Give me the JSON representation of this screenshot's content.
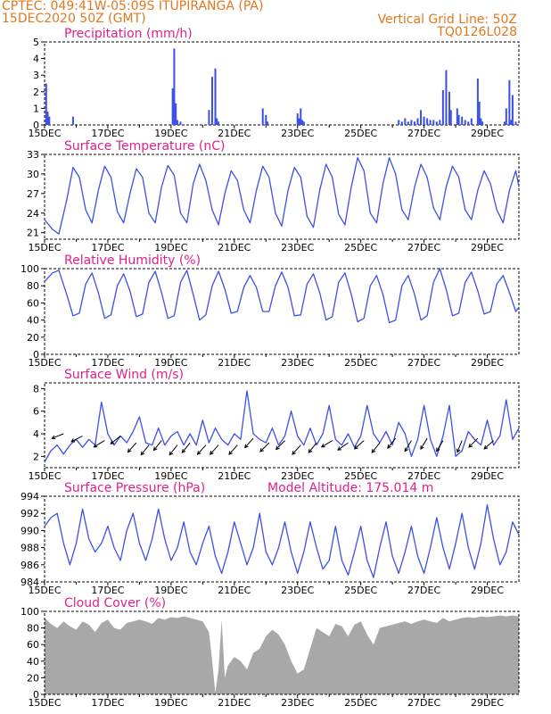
{
  "header": {
    "line1_left": "CPTEC:   049:41W-05:09S   ITUPIRANGA (PA)",
    "line2_left": "15DEC2020 50Z (GMT)",
    "line1_right": "Vertical Grid Line: 50Z",
    "line2_right": "TQ0126L028"
  },
  "colors": {
    "line": "#3c50e6",
    "bar": "#3c50e6",
    "cloud": "#a8a8a8",
    "title": "#e0208c",
    "header": "#e07820"
  },
  "chart_data": [
    {
      "type": "bar",
      "title": "Precipitation (mm/h)",
      "ylim": [
        0,
        5
      ],
      "yticks": [
        "0",
        "1",
        "2",
        "3",
        "4",
        "5"
      ],
      "xticks": [
        "15DEC",
        "17DEC",
        "19DEC",
        "21DEC",
        "23DEC",
        "25DEC",
        "27DEC",
        "29DEC"
      ],
      "xrange_days": [
        15,
        30
      ],
      "day": [
        15.05,
        15.1,
        15.15,
        15.9,
        19.05,
        19.1,
        19.15,
        19.2,
        19.3,
        20.2,
        20.3,
        20.4,
        20.45,
        20.5,
        21.9,
        22.0,
        22.05,
        23.0,
        23.05,
        23.1,
        23.15,
        23.2,
        26.2,
        26.3,
        26.4,
        26.5,
        26.6,
        26.7,
        26.8,
        26.9,
        27.0,
        27.1,
        27.2,
        27.3,
        27.4,
        27.5,
        27.6,
        27.7,
        27.8,
        27.85,
        28.05,
        28.1,
        28.2,
        28.3,
        28.4,
        28.5,
        28.7,
        28.75,
        28.8,
        28.85,
        29.55,
        29.6,
        29.7,
        29.75,
        29.8,
        29.9
      ],
      "values": [
        2.5,
        0.8,
        0.5,
        0.5,
        2.2,
        4.6,
        1.3,
        0.3,
        0.2,
        0.9,
        2.9,
        3.4,
        0.4,
        0.2,
        1.0,
        0.6,
        0.2,
        0.7,
        0.4,
        1.0,
        0.3,
        0.2,
        0.3,
        0.2,
        0.4,
        0.2,
        0.3,
        0.2,
        0.4,
        0.9,
        0.5,
        0.4,
        0.3,
        0.3,
        0.2,
        0.3,
        2.1,
        3.3,
        2.0,
        0.9,
        1.0,
        0.6,
        0.5,
        0.3,
        0.2,
        0.4,
        2.8,
        1.4,
        0.4,
        0.2,
        0.2,
        1.0,
        2.7,
        0.3,
        1.8,
        0.2
      ]
    },
    {
      "type": "line",
      "title": "Surface Temperature (nC)",
      "ylim": [
        20,
        33
      ],
      "yticks": [
        "21",
        "24",
        "27",
        "30",
        "33"
      ],
      "xticks": [
        "15DEC",
        "17DEC",
        "19DEC",
        "21DEC",
        "23DEC",
        "25DEC",
        "27DEC",
        "29DEC"
      ],
      "xrange_days": [
        15,
        30
      ],
      "x": [
        15.0,
        15.25,
        15.45,
        15.7,
        15.9,
        16.1,
        16.3,
        16.5,
        16.7,
        16.9,
        17.1,
        17.3,
        17.5,
        17.7,
        17.9,
        18.1,
        18.3,
        18.5,
        18.7,
        18.9,
        19.1,
        19.3,
        19.5,
        19.7,
        19.9,
        20.1,
        20.3,
        20.5,
        20.7,
        20.9,
        21.1,
        21.3,
        21.5,
        21.7,
        21.9,
        22.1,
        22.3,
        22.5,
        22.7,
        22.9,
        23.1,
        23.3,
        23.5,
        23.7,
        23.9,
        24.1,
        24.3,
        24.5,
        24.7,
        24.9,
        25.1,
        25.3,
        25.5,
        25.7,
        25.9,
        26.1,
        26.3,
        26.5,
        26.7,
        26.9,
        27.1,
        27.3,
        27.5,
        27.7,
        27.9,
        28.1,
        28.3,
        28.5,
        28.7,
        28.9,
        29.1,
        29.3,
        29.5,
        29.7,
        29.9,
        30.0
      ],
      "y": [
        23.0,
        21.5,
        20.8,
        26.0,
        31.0,
        29.5,
        24.5,
        22.5,
        27.5,
        31.2,
        29.5,
        24.2,
        22.5,
        27.0,
        30.8,
        29.5,
        24.0,
        22.5,
        28.0,
        31.3,
        29.8,
        24.0,
        22.5,
        28.5,
        31.5,
        29.0,
        24.5,
        22.2,
        27.0,
        30.5,
        29.0,
        24.5,
        22.5,
        27.5,
        31.2,
        29.5,
        24.0,
        22.0,
        27.5,
        31.0,
        29.5,
        23.5,
        21.8,
        27.5,
        31.5,
        29.5,
        23.8,
        22.2,
        28.0,
        32.5,
        30.5,
        24.0,
        22.5,
        28.5,
        32.5,
        30.0,
        24.5,
        23.0,
        28.0,
        31.5,
        29.5,
        24.8,
        23.0,
        28.0,
        31.2,
        29.5,
        24.5,
        23.0,
        27.5,
        30.5,
        28.5,
        24.5,
        22.5,
        27.5,
        30.5,
        28.0
      ]
    },
    {
      "type": "line",
      "title": "Relative Humidity (%)",
      "ylim": [
        0,
        100
      ],
      "yticks": [
        "0",
        "20",
        "40",
        "60",
        "80",
        "100"
      ],
      "xticks": [
        "15DEC",
        "17DEC",
        "19DEC",
        "21DEC",
        "23DEC",
        "25DEC",
        "27DEC",
        "29DEC"
      ],
      "xrange_days": [
        15,
        30
      ],
      "x": [
        15.0,
        15.25,
        15.45,
        15.7,
        15.9,
        16.1,
        16.3,
        16.5,
        16.7,
        16.9,
        17.1,
        17.3,
        17.5,
        17.7,
        17.9,
        18.1,
        18.3,
        18.5,
        18.7,
        18.9,
        19.1,
        19.3,
        19.5,
        19.7,
        19.9,
        20.1,
        20.3,
        20.5,
        20.7,
        20.9,
        21.1,
        21.3,
        21.5,
        21.7,
        21.9,
        22.1,
        22.3,
        22.5,
        22.7,
        22.9,
        23.1,
        23.3,
        23.5,
        23.7,
        23.9,
        24.1,
        24.3,
        24.5,
        24.7,
        24.9,
        25.1,
        25.3,
        25.5,
        25.7,
        25.9,
        26.1,
        26.3,
        26.5,
        26.7,
        26.9,
        27.1,
        27.3,
        27.5,
        27.7,
        27.9,
        28.1,
        28.3,
        28.5,
        28.7,
        28.9,
        29.1,
        29.3,
        29.5,
        29.7,
        29.9,
        30.0
      ],
      "y": [
        85,
        95,
        98,
        70,
        45,
        48,
        82,
        95,
        72,
        42,
        46,
        80,
        94,
        74,
        44,
        47,
        84,
        97,
        72,
        42,
        45,
        84,
        98,
        70,
        40,
        46,
        80,
        97,
        76,
        48,
        50,
        78,
        92,
        78,
        50,
        50,
        80,
        96,
        78,
        45,
        46,
        82,
        94,
        72,
        40,
        44,
        84,
        95,
        70,
        38,
        42,
        80,
        92,
        70,
        37,
        40,
        80,
        92,
        70,
        40,
        45,
        84,
        100,
        76,
        45,
        48,
        84,
        96,
        74,
        47,
        50,
        82,
        92,
        72,
        50,
        55
      ]
    },
    {
      "type": "line",
      "title": "Surface Wind (m/s)",
      "ylim": [
        1,
        8.5
      ],
      "yticks": [
        "2",
        "4",
        "6",
        "8"
      ],
      "xticks": [
        "15DEC",
        "17DEC",
        "19DEC",
        "21DEC",
        "23DEC",
        "25DEC",
        "27DEC",
        "29DEC"
      ],
      "xrange_days": [
        15,
        30
      ],
      "x": [
        15.0,
        15.2,
        15.4,
        15.6,
        15.8,
        16.0,
        16.2,
        16.4,
        16.6,
        16.8,
        17.0,
        17.2,
        17.4,
        17.6,
        17.8,
        18.0,
        18.2,
        18.4,
        18.6,
        18.8,
        19.0,
        19.2,
        19.4,
        19.6,
        19.8,
        20.0,
        20.2,
        20.4,
        20.6,
        20.8,
        21.0,
        21.2,
        21.4,
        21.6,
        21.8,
        22.0,
        22.2,
        22.4,
        22.6,
        22.8,
        23.0,
        23.2,
        23.4,
        23.6,
        23.8,
        24.0,
        24.2,
        24.4,
        24.6,
        24.8,
        25.0,
        25.2,
        25.4,
        25.6,
        25.8,
        26.0,
        26.2,
        26.4,
        26.6,
        26.8,
        27.0,
        27.2,
        27.4,
        27.6,
        27.8,
        28.0,
        28.2,
        28.4,
        28.6,
        28.8,
        29.0,
        29.2,
        29.4,
        29.6,
        29.8,
        30.0
      ],
      "y": [
        1.5,
        2.5,
        3.0,
        2.2,
        3.0,
        3.5,
        2.8,
        3.5,
        3.0,
        6.8,
        4.0,
        3.0,
        3.8,
        3.2,
        4.2,
        5.5,
        3.2,
        3.0,
        4.5,
        3.0,
        3.8,
        4.2,
        3.0,
        4.0,
        3.0,
        5.2,
        3.2,
        4.5,
        3.5,
        3.0,
        4.0,
        3.5,
        7.8,
        4.0,
        3.5,
        3.2,
        4.5,
        3.0,
        3.8,
        6.0,
        3.8,
        3.0,
        4.5,
        3.0,
        4.0,
        6.5,
        3.5,
        3.0,
        4.0,
        2.8,
        3.8,
        6.5,
        4.0,
        3.2,
        4.2,
        3.0,
        5.0,
        4.0,
        2.0,
        3.5,
        6.5,
        3.5,
        2.0,
        3.8,
        6.5,
        2.0,
        2.5,
        4.2,
        3.5,
        3.0,
        5.2,
        3.0,
        3.8,
        7.0,
        3.5,
        4.5
      ],
      "arrows": [
        {
          "day": 15.6,
          "speed": 4.0,
          "dx": -1,
          "dy": -0.4
        },
        {
          "day": 16.2,
          "speed": 3.8,
          "dx": -1,
          "dy": -0.5
        },
        {
          "day": 16.9,
          "speed": 3.4,
          "dx": -1,
          "dy": -0.6
        },
        {
          "day": 17.4,
          "speed": 3.8,
          "dx": -1,
          "dy": -0.8
        },
        {
          "day": 17.9,
          "speed": 3.2,
          "dx": -0.9,
          "dy": -1
        },
        {
          "day": 18.3,
          "speed": 3.0,
          "dx": -0.8,
          "dy": -1
        },
        {
          "day": 18.7,
          "speed": 3.4,
          "dx": -0.8,
          "dy": -1
        },
        {
          "day": 19.2,
          "speed": 3.0,
          "dx": -0.8,
          "dy": -1
        },
        {
          "day": 19.6,
          "speed": 3.2,
          "dx": -0.8,
          "dy": -1
        },
        {
          "day": 20.1,
          "speed": 3.0,
          "dx": -0.9,
          "dy": -1
        },
        {
          "day": 20.5,
          "speed": 3.0,
          "dx": -0.9,
          "dy": -1
        },
        {
          "day": 21.1,
          "speed": 3.0,
          "dx": -0.9,
          "dy": -1
        },
        {
          "day": 21.6,
          "speed": 3.6,
          "dx": -0.9,
          "dy": -1
        },
        {
          "day": 22.1,
          "speed": 3.2,
          "dx": -0.9,
          "dy": -0.9
        },
        {
          "day": 22.6,
          "speed": 3.4,
          "dx": -0.9,
          "dy": -0.9
        },
        {
          "day": 23.1,
          "speed": 3.0,
          "dx": -0.9,
          "dy": -1
        },
        {
          "day": 23.6,
          "speed": 3.2,
          "dx": -0.8,
          "dy": -1
        },
        {
          "day": 24.1,
          "speed": 3.4,
          "dx": -1,
          "dy": -0.6
        },
        {
          "day": 24.6,
          "speed": 3.2,
          "dx": -1,
          "dy": -0.7
        },
        {
          "day": 25.1,
          "speed": 3.4,
          "dx": -0.9,
          "dy": -0.8
        },
        {
          "day": 25.6,
          "speed": 3.2,
          "dx": -0.8,
          "dy": -1
        },
        {
          "day": 26.1,
          "speed": 3.6,
          "dx": -0.8,
          "dy": -1
        },
        {
          "day": 26.6,
          "speed": 3.4,
          "dx": -0.6,
          "dy": -1
        },
        {
          "day": 27.1,
          "speed": 3.6,
          "dx": -0.6,
          "dy": -1
        },
        {
          "day": 27.6,
          "speed": 3.4,
          "dx": -0.6,
          "dy": -1
        },
        {
          "day": 28.2,
          "speed": 3.4,
          "dx": -0.4,
          "dy": -1
        },
        {
          "day": 28.7,
          "speed": 3.6,
          "dx": -0.9,
          "dy": -0.9
        },
        {
          "day": 29.2,
          "speed": 3.4,
          "dx": -0.9,
          "dy": -0.8
        }
      ]
    },
    {
      "type": "line",
      "title": "Surface Pressure (hPa)",
      "subtitle": "Model Altitude: 175.014 m",
      "ylim": [
        984,
        994
      ],
      "yticks": [
        "984",
        "986",
        "988",
        "990",
        "992",
        "994"
      ],
      "xticks": [
        "15DEC",
        "17DEC",
        "19DEC",
        "21DEC",
        "23DEC",
        "25DEC",
        "27DEC",
        "29DEC"
      ],
      "xrange_days": [
        15,
        30
      ],
      "x": [
        15.0,
        15.2,
        15.4,
        15.6,
        15.8,
        16.0,
        16.2,
        16.4,
        16.6,
        16.8,
        17.0,
        17.2,
        17.4,
        17.6,
        17.8,
        18.0,
        18.2,
        18.4,
        18.6,
        18.8,
        19.0,
        19.2,
        19.4,
        19.6,
        19.8,
        20.0,
        20.2,
        20.4,
        20.6,
        20.8,
        21.0,
        21.2,
        21.4,
        21.6,
        21.8,
        22.0,
        22.2,
        22.4,
        22.6,
        22.8,
        23.0,
        23.2,
        23.4,
        23.6,
        23.8,
        24.0,
        24.2,
        24.4,
        24.6,
        24.8,
        25.0,
        25.2,
        25.4,
        25.6,
        25.8,
        26.0,
        26.2,
        26.4,
        26.6,
        26.8,
        27.0,
        27.2,
        27.4,
        27.6,
        27.8,
        28.0,
        28.2,
        28.4,
        28.6,
        28.8,
        29.0,
        29.2,
        29.4,
        29.6,
        29.8,
        30.0
      ],
      "y": [
        990.5,
        991.5,
        992.0,
        988.5,
        986.0,
        988.5,
        992.5,
        989.0,
        987.5,
        988.5,
        990.5,
        988.0,
        986.5,
        990.0,
        992.0,
        988.5,
        986.5,
        989.0,
        992.5,
        989.0,
        986.5,
        988.0,
        991.0,
        987.5,
        986.0,
        988.5,
        990.5,
        987.0,
        985.0,
        987.5,
        991.0,
        988.5,
        986.0,
        988.0,
        992.0,
        987.5,
        986.0,
        988.0,
        991.0,
        987.5,
        985.0,
        987.5,
        991.0,
        988.0,
        985.5,
        986.5,
        990.5,
        986.5,
        984.8,
        987.5,
        990.5,
        986.5,
        984.5,
        988.0,
        991.0,
        987.0,
        985.0,
        987.5,
        990.5,
        987.0,
        985.0,
        988.0,
        991.5,
        988.0,
        985.5,
        988.5,
        992.0,
        988.0,
        985.5,
        988.5,
        993.0,
        989.0,
        986.0,
        987.5,
        991.0,
        989.5
      ]
    },
    {
      "type": "area",
      "title": "Cloud Cover (%)",
      "ylim": [
        0,
        100
      ],
      "yticks": [
        "0",
        "20",
        "40",
        "60",
        "80",
        "100"
      ],
      "xticks": [
        "15DEC",
        "17DEC",
        "19DEC",
        "21DEC",
        "23DEC",
        "25DEC",
        "27DEC",
        "29DEC"
      ],
      "xrange_days": [
        15,
        30
      ],
      "x": [
        15.0,
        15.2,
        15.4,
        15.6,
        15.8,
        16.0,
        16.2,
        16.4,
        16.6,
        16.8,
        17.0,
        17.2,
        17.4,
        17.6,
        17.8,
        18.0,
        18.2,
        18.4,
        18.6,
        18.8,
        19.0,
        19.2,
        19.4,
        19.6,
        19.8,
        20.0,
        20.2,
        20.3,
        20.4,
        20.5,
        20.6,
        20.7,
        20.8,
        21.0,
        21.2,
        21.4,
        21.6,
        21.8,
        22.0,
        22.2,
        22.4,
        22.6,
        22.8,
        23.0,
        23.2,
        23.4,
        23.6,
        23.8,
        24.0,
        24.2,
        24.4,
        24.6,
        24.8,
        25.0,
        25.2,
        25.4,
        25.6,
        25.8,
        26.0,
        26.2,
        26.4,
        26.6,
        26.8,
        27.0,
        27.2,
        27.4,
        27.6,
        27.8,
        28.0,
        28.2,
        28.4,
        28.6,
        28.8,
        29.0,
        29.2,
        29.4,
        29.6,
        29.8,
        30.0
      ],
      "y": [
        92,
        85,
        80,
        88,
        82,
        78,
        88,
        84,
        75,
        86,
        90,
        80,
        78,
        86,
        88,
        90,
        88,
        85,
        92,
        90,
        93,
        92,
        94,
        92,
        90,
        88,
        75,
        40,
        2,
        30,
        90,
        20,
        35,
        45,
        40,
        30,
        50,
        55,
        70,
        78,
        72,
        60,
        40,
        25,
        30,
        55,
        80,
        75,
        70,
        85,
        82,
        70,
        84,
        88,
        72,
        60,
        80,
        82,
        84,
        86,
        88,
        85,
        88,
        90,
        88,
        86,
        92,
        88,
        90,
        92,
        93,
        92,
        94,
        93,
        94,
        95,
        94,
        95,
        94
      ]
    }
  ]
}
